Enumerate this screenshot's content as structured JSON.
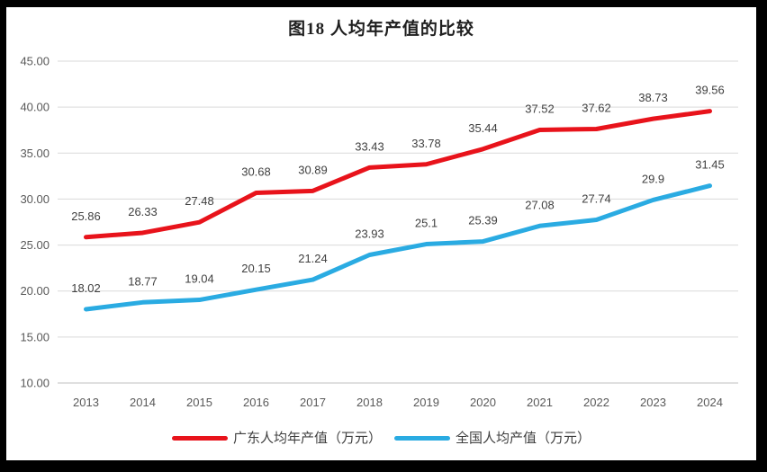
{
  "chart_data": {
    "type": "line",
    "title": "图18 人均年产值的比较",
    "categories": [
      "2013",
      "2014",
      "2015",
      "2016",
      "2017",
      "2018",
      "2019",
      "2020",
      "2021",
      "2022",
      "2023",
      "2024"
    ],
    "series": [
      {
        "name": "广东人均年产值（万元）",
        "color": "#e8131b",
        "values": [
          25.86,
          26.33,
          27.48,
          30.68,
          30.89,
          33.43,
          33.78,
          35.44,
          37.52,
          37.62,
          38.73,
          39.56
        ],
        "labels": [
          "25.86",
          "26.33",
          "27.48",
          "30.68",
          "30.89",
          "33.43",
          "33.78",
          "35.44",
          "37.52",
          "37.62",
          "38.73",
          "39.56"
        ]
      },
      {
        "name": "全国人均产值（万元）",
        "color": "#2aabe2",
        "values": [
          18.02,
          18.77,
          19.04,
          20.15,
          21.24,
          23.93,
          25.1,
          25.39,
          27.08,
          27.74,
          29.9,
          31.45
        ],
        "labels": [
          "18.02",
          "18.77",
          "19.04",
          "20.15",
          "21.24",
          "23.93",
          "25.1",
          "25.39",
          "27.08",
          "27.74",
          "29.9",
          "31.45"
        ]
      }
    ],
    "y_axis": {
      "min": 10,
      "max": 45,
      "tick_step": 5,
      "tick_labels": [
        "10.00",
        "15.00",
        "20.00",
        "25.00",
        "30.00",
        "35.00",
        "40.00",
        "45.00"
      ]
    },
    "grid": true,
    "data_labels": true,
    "legend_position": "bottom"
  },
  "colors": {
    "frame_border": "#000000",
    "background": "#ffffff",
    "gridline": "#d9d9d9",
    "axis_line": "#bfbfbf",
    "tick_text": "#595959",
    "data_label_text": "#404040",
    "title_text": "#1f1f1f",
    "legend_text": "#3f3f3f"
  }
}
